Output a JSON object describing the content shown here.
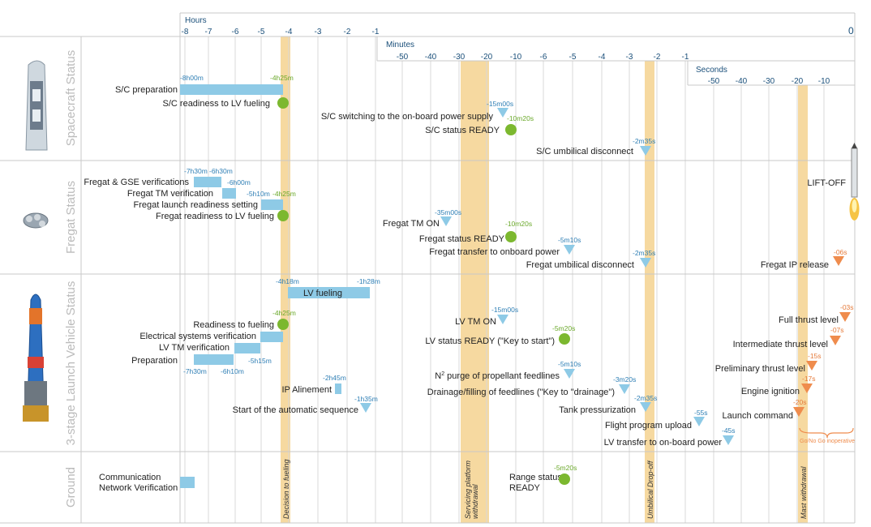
{
  "axes": {
    "hours": {
      "title": "Hours",
      "ticks": [
        "-8",
        "-7",
        "-6",
        "-5",
        "-4",
        "-3",
        "-2",
        "-1"
      ],
      "zero": "0"
    },
    "minutes": {
      "title": "Minutes",
      "ticks": [
        "-50",
        "-40",
        "-30",
        "-20",
        "-10",
        "-6",
        "-5",
        "-4",
        "-3",
        "-2",
        "-1"
      ]
    },
    "seconds": {
      "title": "Seconds",
      "ticks": [
        "-50",
        "-40",
        "-30",
        "-20",
        "-10"
      ]
    }
  },
  "sections": [
    "Spacecraft Status",
    "Fregat Status",
    "3-stage Launch Vehicle Status",
    "Ground"
  ],
  "milestones": [
    "Decision to fueling",
    "Servicing platform withdrawal",
    "Umbilical Drop-off",
    "Mast withdrawal"
  ],
  "colors": {
    "bar": "#8ecae6",
    "circle": "#7cb82f",
    "tri_blue": "#8ecae6",
    "tri_orange": "#ef8c4d",
    "band": "#f6d9a0",
    "axis": "#1a4f7a"
  },
  "events": [
    {
      "label": "S/C preparation",
      "kind": "bar",
      "start": "-8h00m",
      "end": "-4h25m"
    },
    {
      "label": "S/C readiness to LV fueling",
      "kind": "circle",
      "time": "-4h25m"
    },
    {
      "label": "S/C switching to the on-board power supply",
      "kind": "triangle",
      "time": "-15m00s"
    },
    {
      "label": "S/C status READY",
      "kind": "circle",
      "time": "-10m20s"
    },
    {
      "label": "S/C umbilical disconnect",
      "kind": "triangle",
      "time": "-2m35s"
    },
    {
      "label": "Fregat & GSE verifications",
      "kind": "bar",
      "start": "-7h30m",
      "end": "-6h30m"
    },
    {
      "label": "Fregat TM verification",
      "kind": "bar",
      "start": "-6h30m",
      "end": "-6h00m"
    },
    {
      "label": "Fregat launch readiness setting",
      "kind": "bar",
      "start": "-5h10m",
      "end": "-4h25m"
    },
    {
      "label": "Fregat readiness to LV fueling",
      "kind": "circle",
      "time": "-4h25m"
    },
    {
      "label": "Fregat TM ON",
      "kind": "triangle",
      "time": "-35m00s"
    },
    {
      "label": "Fregat status READY",
      "kind": "circle",
      "time": "-10m20s"
    },
    {
      "label": "Fregat transfer to onboard power",
      "kind": "triangle",
      "time": "-5m10s"
    },
    {
      "label": "Fregat umbilical disconnect",
      "kind": "triangle",
      "time": "-2m35s"
    },
    {
      "label": "Fregat IP release",
      "kind": "triangle",
      "time": "-06s"
    },
    {
      "label": "LIFT-OFF",
      "kind": "rocket"
    },
    {
      "label": "LV  fueling",
      "kind": "bar",
      "start": "-4h18m",
      "end": "-1h28m"
    },
    {
      "label": "Readiness to fueling",
      "kind": "circle",
      "time": "-4h25m"
    },
    {
      "label": "Electrical systems verification",
      "kind": "bar"
    },
    {
      "label": "LV TM verification",
      "kind": "bar",
      "end": "-5h15m"
    },
    {
      "label": "Preparation",
      "kind": "bar",
      "start": "-7h30m",
      "end": "-6h10m"
    },
    {
      "label": "IP Alinement",
      "kind": "bar",
      "time": "-2h45m"
    },
    {
      "label": "Start of the automatic sequence",
      "kind": "triangle",
      "time": "-1h35m"
    },
    {
      "label": "LV TM ON",
      "kind": "triangle",
      "time": "-15m00s"
    },
    {
      "label": "LV status READY (\"Key to start\")",
      "kind": "circle",
      "time": "-5m20s"
    },
    {
      "label": "N  purge of propellant feedlines",
      "kind": "triangle",
      "time": "-5m10s"
    },
    {
      "label": "Drainage/filling of feedlines (\"Key to \"drainage\")",
      "kind": "triangle",
      "time": "-3m20s"
    },
    {
      "label": "Tank pressurization",
      "kind": "triangle",
      "time": "-2m35s"
    },
    {
      "label": "Flight program upload",
      "kind": "triangle",
      "time": "-55s"
    },
    {
      "label": "LV transfer to on-board power",
      "kind": "triangle",
      "time": "-45s"
    },
    {
      "label": "Full thrust level",
      "kind": "triangle",
      "time": "-03s"
    },
    {
      "label": "Intermediate thrust level",
      "kind": "triangle",
      "time": "-07s"
    },
    {
      "label": "Preliminary thrust level",
      "kind": "triangle",
      "time": "-15s"
    },
    {
      "label": "Engine ignition",
      "kind": "triangle",
      "time": "-17s"
    },
    {
      "label": "Launch command",
      "kind": "triangle",
      "time": "-20s"
    },
    {
      "label": "Communication",
      "kind": "text"
    },
    {
      "label": "Network Verification",
      "kind": "bar"
    },
    {
      "label": "Range status",
      "kind": "text"
    },
    {
      "label": "READY",
      "kind": "circle",
      "time": "-5m20s"
    }
  ],
  "go_nogo": "Go/No Go inoperative",
  "superscript_2": "2"
}
